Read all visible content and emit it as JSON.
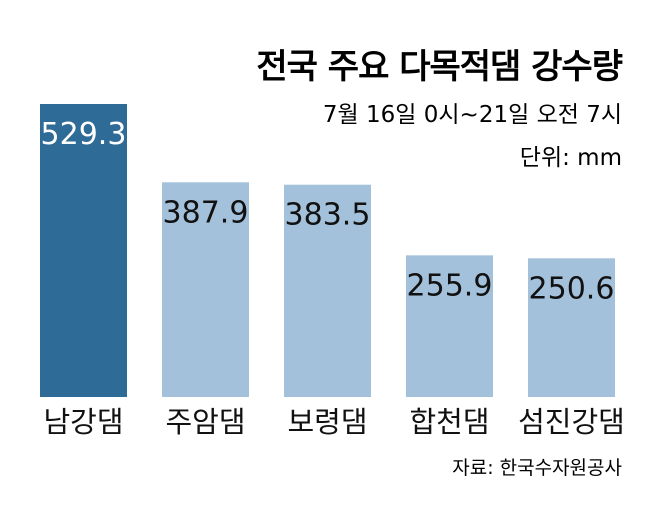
{
  "chart_data": {
    "type": "bar",
    "title": "전국 주요 다목적댐 강수량",
    "subtitle": "7월 16일 0시~21일 오전 7시",
    "unit_label": "단위: mm",
    "categories": [
      "남강댐",
      "주암댐",
      "보령댐",
      "합천댐",
      "섬진강댐"
    ],
    "values": [
      529.3,
      387.9,
      383.5,
      255.9,
      250.6
    ],
    "value_labels": [
      "529.3",
      "387.9",
      "383.5",
      "255.9",
      "250.6"
    ],
    "highlight_index": 0,
    "ylim": [
      0,
      529.3
    ],
    "grid": false,
    "source": "자료: 한국수자원공사"
  },
  "colors": {
    "highlight_bar": "#2f6b97",
    "bar": "#a4c1db",
    "highlight_text": "#ffffff",
    "text": "#111111"
  }
}
